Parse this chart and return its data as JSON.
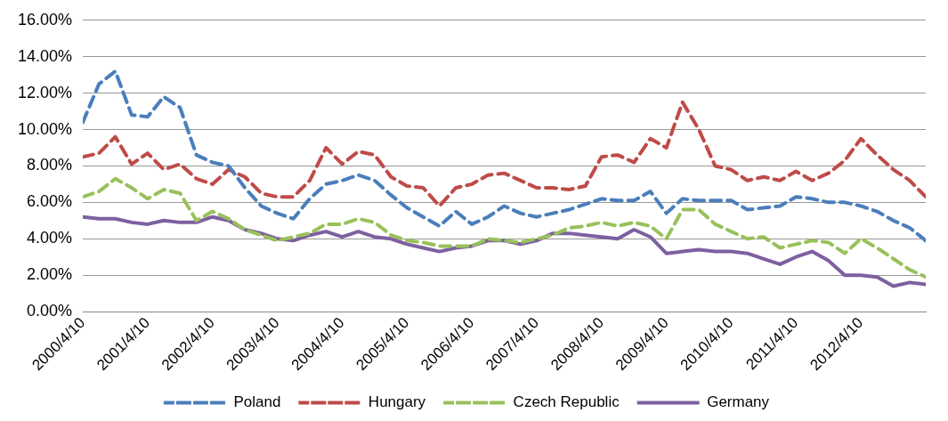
{
  "chart_data": {
    "type": "line",
    "x": [
      "2000-04-10",
      "2000-07-10",
      "2000-10-10",
      "2001-01-10",
      "2001-04-10",
      "2001-07-10",
      "2001-10-10",
      "2002-01-10",
      "2002-04-10",
      "2002-07-10",
      "2002-10-10",
      "2003-01-10",
      "2003-04-10",
      "2003-07-10",
      "2003-10-10",
      "2004-01-10",
      "2004-04-10",
      "2004-07-10",
      "2004-10-10",
      "2005-01-10",
      "2005-04-10",
      "2005-07-10",
      "2005-10-10",
      "2006-01-10",
      "2006-04-10",
      "2006-07-10",
      "2006-10-10",
      "2007-01-10",
      "2007-04-10",
      "2007-07-10",
      "2007-10-10",
      "2008-01-10",
      "2008-04-10",
      "2008-07-10",
      "2008-10-10",
      "2009-01-10",
      "2009-04-10",
      "2009-07-10",
      "2009-10-10",
      "2010-01-10",
      "2010-04-10",
      "2010-07-10",
      "2010-10-10",
      "2011-01-10",
      "2011-04-10",
      "2011-07-10",
      "2011-10-10",
      "2012-01-10",
      "2012-04-10",
      "2012-07-10",
      "2012-10-10",
      "2013-01-10",
      "2013-04-10"
    ],
    "series": [
      {
        "name": "Poland",
        "color": "#4a7ebb",
        "line_style": "dashed",
        "values": [
          10.4,
          12.5,
          13.2,
          10.8,
          10.7,
          11.8,
          11.2,
          8.6,
          8.2,
          8.0,
          6.8,
          5.8,
          5.4,
          5.1,
          6.2,
          7.0,
          7.2,
          7.5,
          7.2,
          6.4,
          5.7,
          5.2,
          4.7,
          5.5,
          4.8,
          5.2,
          5.8,
          5.4,
          5.2,
          5.4,
          5.6,
          5.9,
          6.2,
          6.1,
          6.1,
          6.6,
          5.4,
          6.2,
          6.1,
          6.1,
          6.1,
          5.6,
          5.7,
          5.8,
          6.3,
          6.2,
          6.0,
          6.0,
          5.8,
          5.5,
          5.0,
          4.6,
          3.9
        ]
      },
      {
        "name": "Hungary",
        "color": "#be4b48",
        "line_style": "dashed",
        "values": [
          8.5,
          8.7,
          9.6,
          8.1,
          8.7,
          7.8,
          8.1,
          7.3,
          7.0,
          7.8,
          7.4,
          6.5,
          6.3,
          6.3,
          7.2,
          9.0,
          8.1,
          8.8,
          8.6,
          7.4,
          6.9,
          6.8,
          5.8,
          6.8,
          7.0,
          7.5,
          7.6,
          7.2,
          6.8,
          6.8,
          6.7,
          6.9,
          8.5,
          8.6,
          8.2,
          9.5,
          9.0,
          11.5,
          10.0,
          8.0,
          7.8,
          7.2,
          7.4,
          7.2,
          7.7,
          7.2,
          7.6,
          8.3,
          9.5,
          8.6,
          7.8,
          7.2,
          6.3
        ]
      },
      {
        "name": "Czech Republic",
        "color": "#98c15a",
        "line_style": "dashed",
        "values": [
          6.3,
          6.6,
          7.3,
          6.8,
          6.2,
          6.7,
          6.5,
          5.0,
          5.5,
          5.1,
          4.5,
          4.2,
          3.9,
          4.1,
          4.3,
          4.8,
          4.8,
          5.1,
          4.9,
          4.2,
          3.9,
          3.8,
          3.6,
          3.6,
          3.6,
          4.0,
          3.9,
          3.8,
          4.0,
          4.2,
          4.6,
          4.7,
          4.9,
          4.7,
          4.9,
          4.7,
          4.0,
          5.6,
          5.6,
          4.8,
          4.4,
          4.0,
          4.1,
          3.5,
          3.7,
          3.9,
          3.8,
          3.2,
          4.0,
          3.5,
          2.9,
          2.3,
          1.9
        ]
      },
      {
        "name": "Germany",
        "color": "#7d60a0",
        "line_style": "solid",
        "values": [
          5.2,
          5.1,
          5.1,
          4.9,
          4.8,
          5.0,
          4.9,
          4.9,
          5.2,
          5.0,
          4.5,
          4.3,
          4.0,
          3.9,
          4.2,
          4.4,
          4.1,
          4.4,
          4.1,
          4.0,
          3.7,
          3.5,
          3.3,
          3.5,
          3.6,
          3.9,
          3.9,
          3.7,
          3.9,
          4.3,
          4.3,
          4.2,
          4.1,
          4.0,
          4.5,
          4.1,
          3.2,
          3.3,
          3.4,
          3.3,
          3.3,
          3.2,
          2.9,
          2.6,
          3.0,
          3.3,
          2.8,
          2.0,
          2.0,
          1.9,
          1.4,
          1.6,
          1.5
        ]
      }
    ],
    "xlim": [
      "2000-04-10",
      "2013-04-10"
    ],
    "xticks": [
      {
        "value": "2000-04-10",
        "label": "2000/4/10"
      },
      {
        "value": "2001-04-10",
        "label": "2001/4/10"
      },
      {
        "value": "2002-04-10",
        "label": "2002/4/10"
      },
      {
        "value": "2003-04-10",
        "label": "2003/4/10"
      },
      {
        "value": "2004-04-10",
        "label": "2004/4/10"
      },
      {
        "value": "2005-04-10",
        "label": "2005/4/10"
      },
      {
        "value": "2006-04-10",
        "label": "2006/4/10"
      },
      {
        "value": "2007-04-10",
        "label": "2007/4/10"
      },
      {
        "value": "2008-04-10",
        "label": "2008/4/10"
      },
      {
        "value": "2009-04-10",
        "label": "2009/4/10"
      },
      {
        "value": "2010-04-10",
        "label": "2010/4/10"
      },
      {
        "value": "2011-04-10",
        "label": "2011/4/10"
      },
      {
        "value": "2012-04-10",
        "label": "2012/4/10"
      }
    ],
    "ylim": [
      0,
      16
    ],
    "yticks": [
      {
        "value": 0,
        "label": "0.00%"
      },
      {
        "value": 2,
        "label": "2.00%"
      },
      {
        "value": 4,
        "label": "4.00%"
      },
      {
        "value": 6,
        "label": "6.00%"
      },
      {
        "value": 8,
        "label": "8.00%"
      },
      {
        "value": 10,
        "label": "10.00%"
      },
      {
        "value": 12,
        "label": "12.00%"
      },
      {
        "value": 14,
        "label": "14.00%"
      },
      {
        "value": 16,
        "label": "16.00%"
      }
    ],
    "grid": "y",
    "legend": "bottom",
    "marker": "none"
  }
}
